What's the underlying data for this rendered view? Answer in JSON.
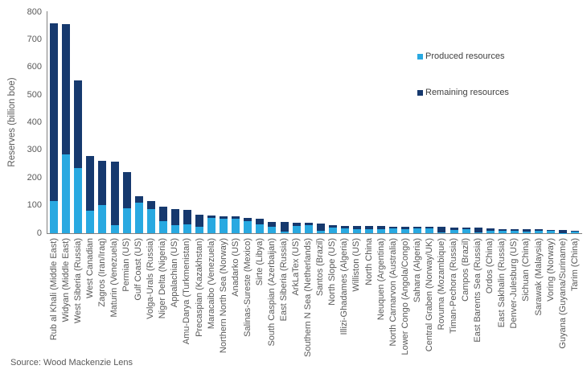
{
  "chart_data": {
    "type": "bar",
    "stacked": true,
    "title": "",
    "xlabel": "",
    "ylabel": "Reserves (billion boe)",
    "ylim": [
      0,
      800
    ],
    "ytick_step": 100,
    "grid": false,
    "legend_position": "upper-right",
    "source": "Source: Wood Mackenzie Lens",
    "categories": [
      "Rub al Khali (Middle East)",
      "Widyan (Middle East)",
      "West Siberia (Russia)",
      "West Canadian",
      "Zagros (Iran/Iraq)",
      "Maturin (Venezuela)",
      "Permian (US)",
      "Gulf Coast (US)",
      "Volga-Urals (Russia)",
      "Niger Delta (Nigeria)",
      "Appalachian (US)",
      "Amu-Darya (Turkmenistan)",
      "Precaspian (Kazakhstan)",
      "Maracaibo (Venezuela)",
      "Northern North Sea (Norway)",
      "Anadarko (US)",
      "Salinas-Sureste (Mexico)",
      "Sirte (Libya)",
      "South Caspian (Azerbaijan)",
      "East Siberia (Russia)",
      "ArkLaTex (US)",
      "Southern N Sea (Netherlands)",
      "Santos (Brazil)",
      "North Slope (US)",
      "Illizi-Ghadames (Algeria)",
      "Williston (US)",
      "North China",
      "Neuquen (Argentina)",
      "North Carnarvon (Australia)",
      "Lower Congo (Angola/Congo)",
      "Sahara (Algeria)",
      "Central Graben (Norway/UK)",
      "Rovuma (Mozambique)",
      "Timan-Pechora (Russia)",
      "Campos (Brazil)",
      "East Barents Sea (Russia)",
      "Ordos (China)",
      "East Sakhalin (Russia)",
      "Denver-Julesburg (US)",
      "Sichuan (China)",
      "Sarawak (Malaysia)",
      "Voring (Norway)",
      "Guyana (Guyana/Suriname)",
      "Tarim (China)"
    ],
    "series": [
      {
        "name": "Produced resources",
        "color": "#29A9E1",
        "values": [
          115,
          285,
          235,
          81,
          101,
          28,
          90,
          110,
          88,
          43,
          28,
          32,
          23,
          56,
          52,
          52,
          44,
          33,
          24,
          7,
          27,
          30,
          8,
          21,
          17,
          16,
          16,
          14,
          18,
          16,
          17,
          17,
          2,
          13,
          14,
          3,
          9,
          9,
          10,
          7,
          10,
          9,
          1,
          5
        ]
      },
      {
        "name": "Remaining resources",
        "color": "#16396E",
        "values": [
          645,
          470,
          318,
          198,
          160,
          230,
          132,
          23,
          29,
          54,
          58,
          53,
          45,
          8,
          9,
          8,
          12,
          20,
          18,
          33,
          11,
          7,
          27,
          7,
          10,
          10,
          10,
          11,
          6,
          7,
          6,
          5,
          20,
          8,
          7,
          17,
          9,
          7,
          5,
          8,
          4,
          4,
          10,
          5
        ]
      }
    ]
  }
}
